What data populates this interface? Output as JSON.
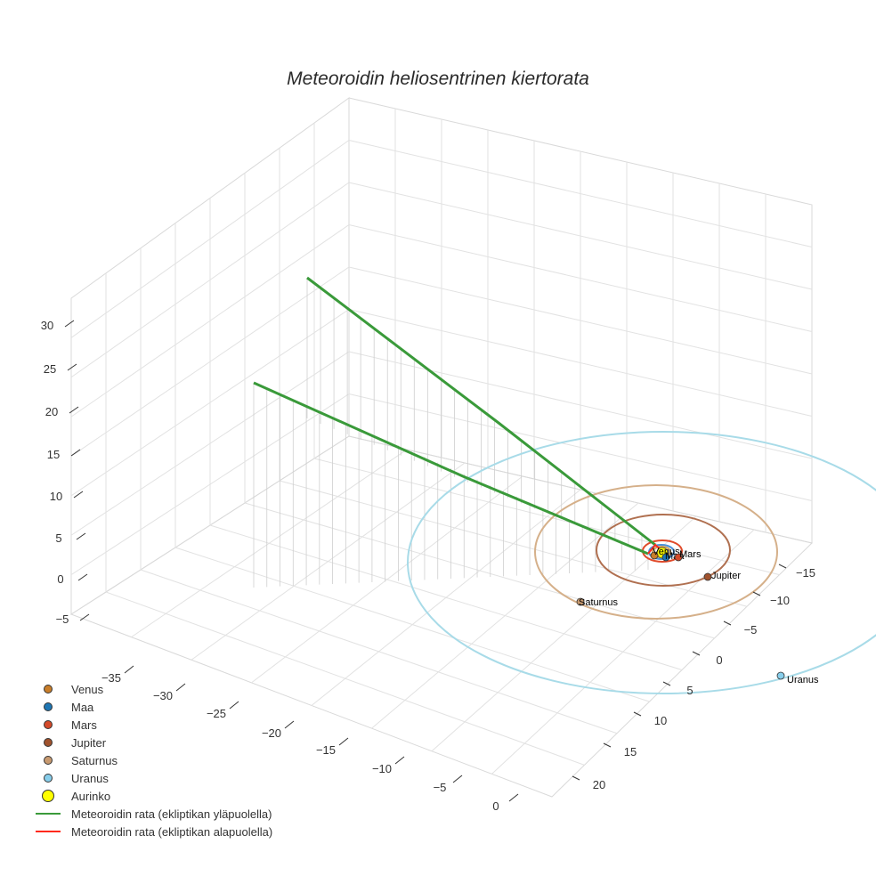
{
  "chart_data": {
    "type": "scatter3d",
    "title": "Meteoroidin heliosentrinen kiertorata",
    "x_ticks": [
      "−35",
      "−30",
      "−25",
      "−20",
      "−15",
      "−10",
      "−5",
      "0"
    ],
    "y_ticks": [
      "−15",
      "−10",
      "−5",
      "0",
      "5",
      "10",
      "15",
      "20"
    ],
    "z_ticks": [
      "30",
      "25",
      "20",
      "15",
      "10",
      "5",
      "0",
      "−5"
    ],
    "sun": {
      "name": "Aurinko",
      "color": "#ffff00"
    },
    "planets": [
      {
        "name": "Venus",
        "color": "#c97e2a",
        "orbit_color": "#d2a25a"
      },
      {
        "name": "Maa",
        "color": "#1f77b4",
        "orbit_color": "#4a90d9"
      },
      {
        "name": "Mars",
        "color": "#d44a2a",
        "orbit_color": "#e04a2a"
      },
      {
        "name": "Jupiter",
        "color": "#a0522d",
        "orbit_color": "#b07050"
      },
      {
        "name": "Saturnus",
        "color": "#c89a70",
        "orbit_color": "#d5b08a"
      },
      {
        "name": "Uranus",
        "color": "#87ceeb",
        "orbit_color": "#a8dbe8"
      }
    ],
    "trajectory": [
      {
        "name": "Meteoroidin rata (ekliptikan yläpuolella)",
        "color": "#3a9a3a"
      },
      {
        "name": "Meteoroidin rata (ekliptikan alapuolella)",
        "color": "#ff2a1a"
      }
    ],
    "grid": true,
    "legend_position": "bottom-left"
  }
}
